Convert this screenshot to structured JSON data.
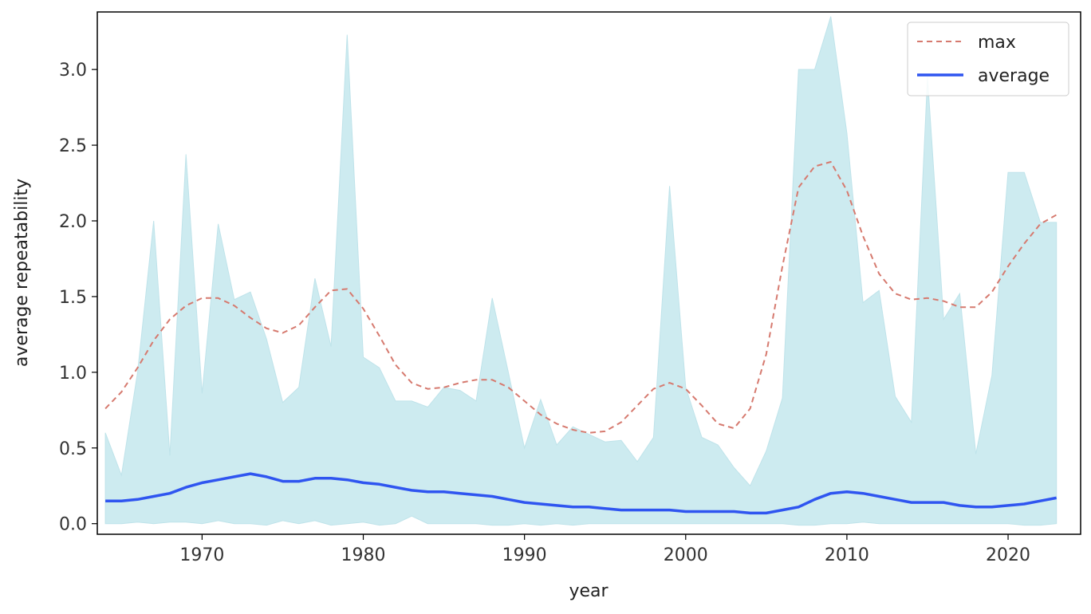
{
  "chart_data": {
    "type": "line",
    "title": "",
    "xlabel": "year",
    "ylabel": "average repeatability",
    "xlim": [
      1963.5,
      2024.5
    ],
    "ylim": [
      -0.07,
      3.38
    ],
    "xticks": [
      1970,
      1980,
      1990,
      2000,
      2010,
      2020
    ],
    "xtick_labels": [
      "1970",
      "1980",
      "1990",
      "2000",
      "2010",
      "2020"
    ],
    "yticks": [
      0.0,
      0.5,
      1.0,
      1.5,
      2.0,
      2.5,
      3.0
    ],
    "ytick_labels": [
      "0.0",
      "0.5",
      "1.0",
      "1.5",
      "2.0",
      "2.5",
      "3.0"
    ],
    "grid": false,
    "legend_position": "top-right",
    "x": [
      1964,
      1965,
      1966,
      1967,
      1968,
      1969,
      1970,
      1971,
      1972,
      1973,
      1974,
      1975,
      1976,
      1977,
      1978,
      1979,
      1980,
      1981,
      1982,
      1983,
      1984,
      1985,
      1986,
      1987,
      1988,
      1989,
      1990,
      1991,
      1992,
      1993,
      1994,
      1995,
      1996,
      1997,
      1998,
      1999,
      2000,
      2001,
      2002,
      2003,
      2004,
      2005,
      2006,
      2007,
      2008,
      2009,
      2010,
      2011,
      2012,
      2013,
      2014,
      2015,
      2016,
      2017,
      2018,
      2019,
      2020,
      2021,
      2022,
      2023
    ],
    "band": {
      "color": "#cdebf0",
      "upper": [
        0.6,
        0.32,
        1.0,
        2.0,
        0.45,
        2.44,
        0.86,
        1.98,
        1.48,
        1.53,
        1.22,
        0.8,
        0.9,
        1.62,
        1.17,
        3.23,
        1.1,
        1.03,
        0.81,
        0.81,
        0.77,
        0.9,
        0.88,
        0.81,
        1.49,
        1.0,
        0.5,
        0.82,
        0.52,
        0.64,
        0.59,
        0.54,
        0.55,
        0.41,
        0.57,
        2.23,
        0.9,
        0.57,
        0.52,
        0.37,
        0.25,
        0.48,
        0.83,
        3.0,
        3.0,
        3.35,
        2.58,
        1.46,
        1.54,
        0.84,
        0.67,
        2.95,
        1.35,
        1.52,
        0.46,
        0.98,
        2.32,
        2.32,
        1.99,
        1.99
      ],
      "lower": [
        0.0,
        0.0,
        0.01,
        0.0,
        0.01,
        0.01,
        0.0,
        0.02,
        0.0,
        0.0,
        -0.01,
        0.02,
        0.0,
        0.02,
        -0.01,
        0.0,
        0.01,
        -0.01,
        0.0,
        0.05,
        0.0,
        0.0,
        0.0,
        0.0,
        -0.01,
        -0.01,
        0.0,
        -0.01,
        0.0,
        -0.01,
        0.0,
        0.0,
        0.0,
        0.0,
        0.0,
        0.0,
        0.0,
        0.0,
        0.0,
        0.0,
        0.0,
        0.0,
        0.0,
        -0.01,
        -0.01,
        0.0,
        0.0,
        0.01,
        0.0,
        0.0,
        0.0,
        0.0,
        0.0,
        0.0,
        0.0,
        0.0,
        0.0,
        -0.01,
        -0.01,
        0.0
      ]
    },
    "series": [
      {
        "name": "max",
        "color": "#d67a6f",
        "style": "dashed",
        "values": [
          0.76,
          0.87,
          1.03,
          1.21,
          1.35,
          1.44,
          1.49,
          1.49,
          1.44,
          1.36,
          1.29,
          1.26,
          1.31,
          1.43,
          1.54,
          1.55,
          1.42,
          1.24,
          1.05,
          0.93,
          0.89,
          0.9,
          0.93,
          0.95,
          0.95,
          0.9,
          0.81,
          0.72,
          0.66,
          0.62,
          0.6,
          0.61,
          0.67,
          0.78,
          0.89,
          0.93,
          0.89,
          0.78,
          0.66,
          0.63,
          0.76,
          1.12,
          1.7,
          2.22,
          2.36,
          2.39,
          2.2,
          1.9,
          1.65,
          1.52,
          1.48,
          1.49,
          1.47,
          1.43,
          1.43,
          1.53,
          1.7,
          1.85,
          1.98,
          2.04
        ]
      },
      {
        "name": "average",
        "color": "#2f55f0",
        "style": "solid",
        "values": [
          0.15,
          0.15,
          0.16,
          0.18,
          0.2,
          0.24,
          0.27,
          0.29,
          0.31,
          0.33,
          0.31,
          0.28,
          0.28,
          0.3,
          0.3,
          0.29,
          0.27,
          0.26,
          0.24,
          0.22,
          0.21,
          0.21,
          0.2,
          0.19,
          0.18,
          0.16,
          0.14,
          0.13,
          0.12,
          0.11,
          0.11,
          0.1,
          0.09,
          0.09,
          0.09,
          0.09,
          0.08,
          0.08,
          0.08,
          0.08,
          0.07,
          0.07,
          0.09,
          0.11,
          0.16,
          0.2,
          0.21,
          0.2,
          0.18,
          0.16,
          0.14,
          0.14,
          0.14,
          0.12,
          0.11,
          0.11,
          0.12,
          0.13,
          0.15,
          0.17
        ]
      }
    ]
  }
}
